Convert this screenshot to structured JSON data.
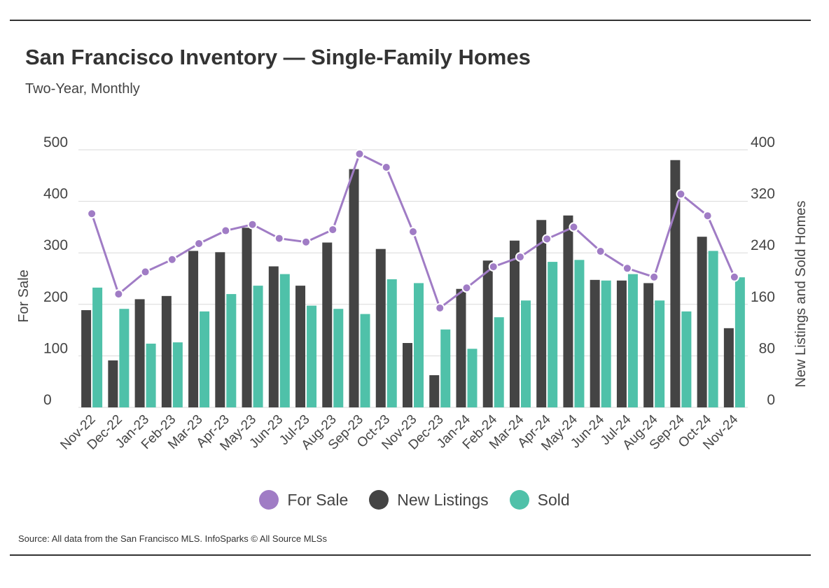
{
  "header": {
    "title": "San Francisco Inventory — Single-Family Homes",
    "subtitle": "Two-Year, Monthly"
  },
  "legend": {
    "for_sale": "For Sale",
    "new_listings": "New Listings",
    "sold": "Sold"
  },
  "footer": {
    "source": "Source:  All data from the San Francisco MLS. InfoSparks © All Source MLSs"
  },
  "colors": {
    "for_sale": "#a07cc5",
    "new_listings": "#444444",
    "sold": "#4fc1a9",
    "grid": "#d9d9d9"
  },
  "chart_data": {
    "type": "bar",
    "title": "San Francisco Inventory — Single-Family Homes",
    "subtitle": "Two-Year, Monthly",
    "categories": [
      "Nov-22",
      "Dec-22",
      "Jan-23",
      "Feb-23",
      "Mar-23",
      "Apr-23",
      "May-23",
      "Jun-23",
      "Jul-23",
      "Aug-23",
      "Sep-23",
      "Oct-23",
      "Nov-23",
      "Dec-23",
      "Jan-24",
      "Feb-24",
      "Mar-24",
      "Apr-24",
      "May-24",
      "Jun-24",
      "Jul-24",
      "Aug-24",
      "Sep-24",
      "Oct-24",
      "Nov-24"
    ],
    "left_axis": {
      "label": "For Sale",
      "ylim": [
        0,
        500
      ],
      "ticks": [
        0,
        100,
        200,
        300,
        400,
        500
      ]
    },
    "right_axis": {
      "label": "New Listings and Sold Homes",
      "ylim": [
        0,
        400
      ],
      "ticks": [
        0,
        80,
        160,
        240,
        320,
        400
      ]
    },
    "grid": true,
    "legend_position": "bottom",
    "series": [
      {
        "name": "For Sale",
        "type": "line",
        "axis": "left",
        "values": [
          376,
          220,
          263,
          287,
          318,
          343,
          355,
          328,
          321,
          345,
          492,
          466,
          341,
          193,
          232,
          273,
          292,
          327,
          350,
          303,
          270,
          253,
          414,
          372,
          253
        ]
      },
      {
        "name": "New Listings",
        "type": "bar",
        "axis": "right",
        "values": [
          151,
          73,
          168,
          173,
          243,
          241,
          279,
          219,
          189,
          256,
          370,
          246,
          100,
          50,
          184,
          228,
          259,
          291,
          298,
          198,
          197,
          193,
          384,
          265,
          123
        ]
      },
      {
        "name": "Sold",
        "type": "bar",
        "axis": "right",
        "values": [
          186,
          153,
          99,
          101,
          149,
          176,
          189,
          207,
          158,
          153,
          145,
          199,
          193,
          121,
          91,
          140,
          166,
          226,
          229,
          197,
          207,
          166,
          149,
          243,
          202
        ]
      }
    ]
  }
}
